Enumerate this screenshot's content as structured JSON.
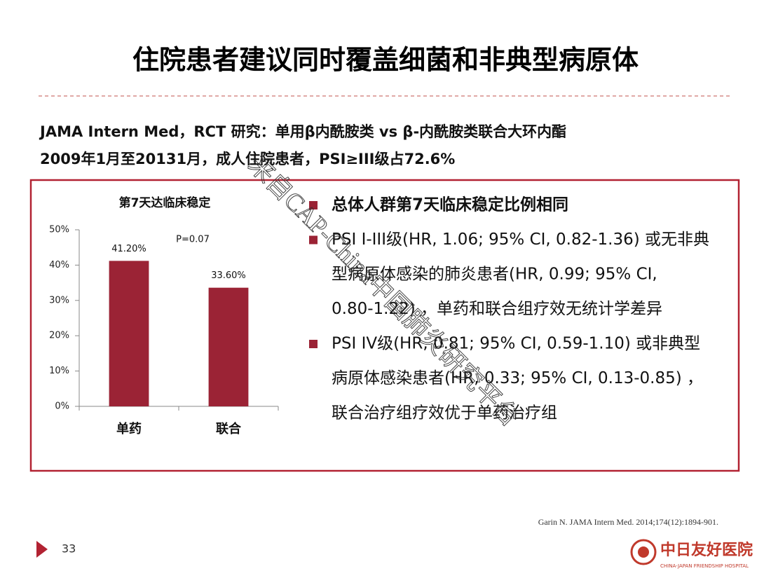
{
  "title": "住院患者建议同时覆盖细菌和非典型病原体",
  "subtitle_lines": [
    "JAMA Intern Med，RCT 研究：单用β内酰胺类 vs β-内酰胺类联合大环内酯",
    "2009年1月至20131月，成人住院患者，PSI≥III级占72.6%"
  ],
  "bullets": [
    [
      "总体人群第7天临床稳定比例相同"
    ],
    [
      "PSI I-III级(HR, 1.06; 95% CI, 0.82-1.36) 或无非典",
      "型病原体感染的肺炎患者(HR, 0.99; 95% CI,",
      "0.80-1.22) ，单药和联合组疗效无统计学差异"
    ],
    [
      "PSI IV级(HR, 0.81; 95% CI, 0.59-1.10) 或非典型",
      "病原体感染患者(HR, 0.33; 95% CI, 0.13-0.85) ，",
      "联合治疗组疗效优于单药治疗组"
    ]
  ],
  "watermark": "来自CAP-China中国肺炎研究平台",
  "citation": "Garin N. JAMA Intern Med. 2014;174(12):1894-901.",
  "page_number": "33",
  "logo": {
    "name": "中日友好医院",
    "english": "CHINA-JAPAN FRIENDSHIP HOSPITAL"
  },
  "chart_data": {
    "type": "bar",
    "title": "第7天达临床稳定",
    "annotation": "P=0.07",
    "categories": [
      "单药",
      "联合"
    ],
    "values": [
      41.2,
      33.6
    ],
    "value_labels": [
      "41.20%",
      "33.60%"
    ],
    "color": "#9b2335",
    "ylim": [
      0,
      50
    ],
    "yticks": [
      {
        "value": 0,
        "label": "0%"
      },
      {
        "value": 10,
        "label": "10%"
      },
      {
        "value": 20,
        "label": "20%"
      },
      {
        "value": 30,
        "label": "30%"
      },
      {
        "value": 40,
        "label": "40%"
      },
      {
        "value": 50,
        "label": "50%"
      }
    ],
    "grid": false
  }
}
